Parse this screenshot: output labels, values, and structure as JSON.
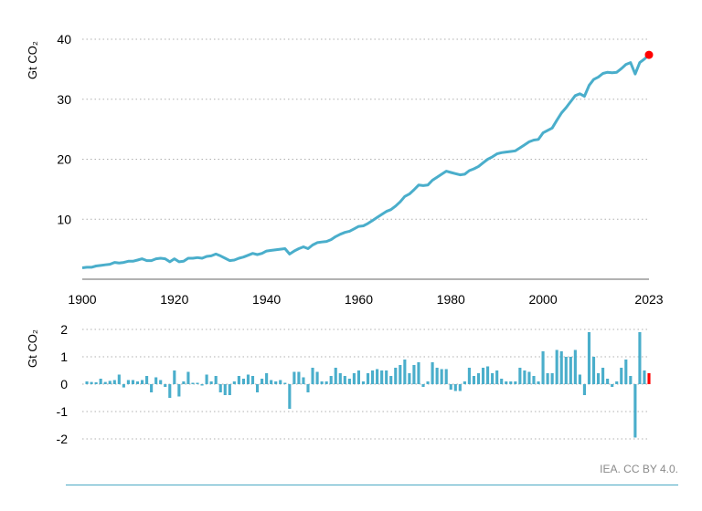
{
  "colors": {
    "series": "#4aaecb",
    "highlight": "#ff0000",
    "grid": "#b0b0b0",
    "axis": "#666666",
    "credit": "#8a8a8a"
  },
  "credit": "IEA. CC BY 4.0.",
  "chart_data": [
    {
      "type": "line",
      "ylabel": "Gt CO₂",
      "xlim": [
        1900,
        2023
      ],
      "ylim": [
        0,
        40
      ],
      "yticks": [
        10,
        20,
        30,
        40
      ],
      "xticks": [
        "1900",
        "1920",
        "1940",
        "1960",
        "1980",
        "2000",
        "2023"
      ],
      "grid": "horizontal dotted",
      "highlight_point": {
        "x": 2023,
        "y": 37.4
      },
      "x": [
        1900,
        1901,
        1902,
        1903,
        1904,
        1905,
        1906,
        1907,
        1908,
        1909,
        1910,
        1911,
        1912,
        1913,
        1914,
        1915,
        1916,
        1917,
        1918,
        1919,
        1920,
        1921,
        1922,
        1923,
        1924,
        1925,
        1926,
        1927,
        1928,
        1929,
        1930,
        1931,
        1932,
        1933,
        1934,
        1935,
        1936,
        1937,
        1938,
        1939,
        1940,
        1941,
        1942,
        1943,
        1944,
        1945,
        1946,
        1947,
        1948,
        1949,
        1950,
        1951,
        1952,
        1953,
        1954,
        1955,
        1956,
        1957,
        1958,
        1959,
        1960,
        1961,
        1962,
        1963,
        1964,
        1965,
        1966,
        1967,
        1968,
        1969,
        1970,
        1971,
        1972,
        1973,
        1974,
        1975,
        1976,
        1977,
        1978,
        1979,
        1980,
        1981,
        1982,
        1983,
        1984,
        1985,
        1986,
        1987,
        1988,
        1989,
        1990,
        1991,
        1992,
        1993,
        1994,
        1995,
        1996,
        1997,
        1998,
        1999,
        2000,
        2001,
        2002,
        2003,
        2004,
        2005,
        2006,
        2007,
        2008,
        2009,
        2010,
        2011,
        2012,
        2013,
        2014,
        2015,
        2016,
        2017,
        2018,
        2019,
        2020,
        2021,
        2022,
        2023
      ],
      "values": [
        1.9,
        2.0,
        2.0,
        2.2,
        2.3,
        2.4,
        2.5,
        2.8,
        2.7,
        2.8,
        3.0,
        3.0,
        3.2,
        3.4,
        3.1,
        3.1,
        3.4,
        3.5,
        3.4,
        2.9,
        3.4,
        2.9,
        3.0,
        3.5,
        3.5,
        3.6,
        3.5,
        3.8,
        3.9,
        4.2,
        3.9,
        3.5,
        3.1,
        3.2,
        3.5,
        3.7,
        4.0,
        4.3,
        4.1,
        4.3,
        4.7,
        4.8,
        4.9,
        5.0,
        5.1,
        4.2,
        4.7,
        5.1,
        5.4,
        5.1,
        5.7,
        6.1,
        6.2,
        6.3,
        6.6,
        7.1,
        7.5,
        7.8,
        8.0,
        8.4,
        8.8,
        8.9,
        9.3,
        9.8,
        10.3,
        10.8,
        11.3,
        11.6,
        12.2,
        12.9,
        13.8,
        14.2,
        14.9,
        15.7,
        15.6,
        15.7,
        16.5,
        17.0,
        17.5,
        18.0,
        17.8,
        17.6,
        17.4,
        17.5,
        18.1,
        18.4,
        18.8,
        19.4,
        20.0,
        20.4,
        20.9,
        21.1,
        21.2,
        21.3,
        21.4,
        21.9,
        22.4,
        22.9,
        23.2,
        23.3,
        24.4,
        24.8,
        25.2,
        26.5,
        27.7,
        28.6,
        29.6,
        30.6,
        30.9,
        30.5,
        32.3,
        33.3,
        33.7,
        34.3,
        34.5,
        34.4,
        34.5,
        35.1,
        35.8,
        36.1,
        34.2,
        36.1,
        36.7,
        37.4
      ]
    },
    {
      "type": "bar",
      "ylabel": "Gt CO₂",
      "ylim": [
        -2.2,
        2.2
      ],
      "yticks": [
        "2",
        "1",
        "0",
        "-1",
        "-2"
      ],
      "grid": "horizontal dotted",
      "highlight_bar": 2023,
      "x": [
        1901,
        1902,
        1903,
        1904,
        1905,
        1906,
        1907,
        1908,
        1909,
        1910,
        1911,
        1912,
        1913,
        1914,
        1915,
        1916,
        1917,
        1918,
        1919,
        1920,
        1921,
        1922,
        1923,
        1924,
        1925,
        1926,
        1927,
        1928,
        1929,
        1930,
        1931,
        1932,
        1933,
        1934,
        1935,
        1936,
        1937,
        1938,
        1939,
        1940,
        1941,
        1942,
        1943,
        1944,
        1945,
        1946,
        1947,
        1948,
        1949,
        1950,
        1951,
        1952,
        1953,
        1954,
        1955,
        1956,
        1957,
        1958,
        1959,
        1960,
        1961,
        1962,
        1963,
        1964,
        1965,
        1966,
        1967,
        1968,
        1969,
        1970,
        1971,
        1972,
        1973,
        1974,
        1975,
        1976,
        1977,
        1978,
        1979,
        1980,
        1981,
        1982,
        1983,
        1984,
        1985,
        1986,
        1987,
        1988,
        1989,
        1990,
        1991,
        1992,
        1993,
        1994,
        1995,
        1996,
        1997,
        1998,
        1999,
        2000,
        2001,
        2002,
        2003,
        2004,
        2005,
        2006,
        2007,
        2008,
        2009,
        2010,
        2011,
        2012,
        2013,
        2014,
        2015,
        2016,
        2017,
        2018,
        2019,
        2020,
        2021,
        2022,
        2023
      ],
      "values": [
        0.1,
        0.08,
        0.07,
        0.2,
        0.08,
        0.12,
        0.15,
        0.35,
        -0.12,
        0.15,
        0.15,
        0.1,
        0.15,
        0.3,
        -0.3,
        0.25,
        0.15,
        -0.1,
        -0.5,
        0.5,
        -0.45,
        0.1,
        0.45,
        0.05,
        0.05,
        -0.05,
        0.35,
        0.1,
        0.3,
        -0.3,
        -0.4,
        -0.4,
        0.1,
        0.3,
        0.2,
        0.35,
        0.3,
        -0.3,
        0.2,
        0.4,
        0.15,
        0.1,
        0.15,
        0.05,
        -0.9,
        0.45,
        0.45,
        0.25,
        -0.3,
        0.6,
        0.45,
        0.1,
        0.1,
        0.3,
        0.6,
        0.4,
        0.3,
        0.2,
        0.4,
        0.5,
        0.1,
        0.4,
        0.5,
        0.55,
        0.5,
        0.5,
        0.3,
        0.6,
        0.7,
        0.9,
        0.4,
        0.7,
        0.8,
        -0.1,
        0.1,
        0.8,
        0.6,
        0.55,
        0.55,
        -0.2,
        -0.25,
        -0.25,
        0.1,
        0.6,
        0.3,
        0.4,
        0.6,
        0.65,
        0.4,
        0.5,
        0.2,
        0.1,
        0.1,
        0.1,
        0.6,
        0.5,
        0.45,
        0.3,
        0.1,
        1.2,
        0.4,
        0.4,
        1.25,
        1.2,
        1.0,
        1.0,
        1.25,
        0.35,
        -0.4,
        1.9,
        1.0,
        0.4,
        0.6,
        0.2,
        -0.1,
        0.1,
        0.6,
        0.9,
        0.3,
        -1.95,
        1.9,
        0.5,
        0.4
      ]
    }
  ]
}
